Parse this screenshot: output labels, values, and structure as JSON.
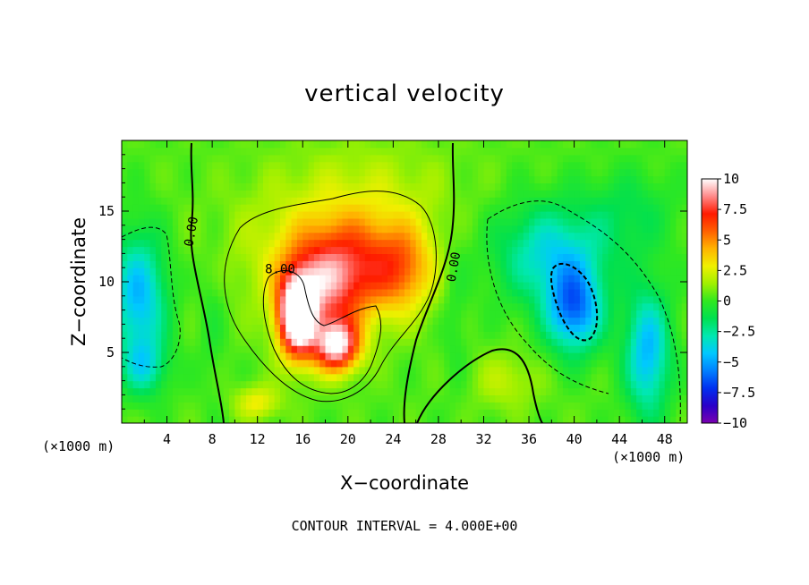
{
  "chart_data": {
    "type": "heatmap",
    "title": "vertical velocity",
    "xlabel": "X−coordinate",
    "ylabel": "Z−coordinate",
    "x_unit_left": "(×1000 m)",
    "x_unit_right": "(×1000 m)",
    "xlim": [
      0,
      50
    ],
    "ylim": [
      0,
      20
    ],
    "x_ticks": [
      4,
      8,
      12,
      16,
      20,
      24,
      28,
      32,
      36,
      40,
      44,
      48
    ],
    "x_tick_labels": [
      "4",
      "8",
      "12",
      "16",
      "20",
      "24",
      "28",
      "32",
      "36",
      "40",
      "44",
      "48"
    ],
    "y_ticks": [
      5,
      10,
      15
    ],
    "y_tick_labels": [
      "5",
      "10",
      "15"
    ],
    "colorbar": {
      "range": [
        -10,
        10
      ],
      "ticks": [
        10,
        7.5,
        5,
        2.5,
        0,
        -2.5,
        -5,
        -7.5,
        -10
      ],
      "tick_labels": [
        "10",
        "7.5",
        "5",
        "2.5",
        "0",
        "−2.5",
        "−5",
        "−7.5",
        "−10"
      ],
      "colors": [
        "#7a00b0",
        "#2a00c8",
        "#0030f0",
        "#0080ff",
        "#00c8ff",
        "#00e8b0",
        "#00e050",
        "#30e820",
        "#a0f000",
        "#f0f000",
        "#ffb400",
        "#ff6000",
        "#ff1a00",
        "#ff8a8a",
        "#ffffff"
      ]
    },
    "contour_labels": [
      {
        "text": "0.00",
        "x": 6.5,
        "y": 13.5,
        "rotate": -80
      },
      {
        "text": "8.00",
        "x": 14.0,
        "y": 10.6,
        "rotate": 0
      },
      {
        "text": "0.00",
        "x": 29.7,
        "y": 11.0,
        "rotate": -80
      }
    ],
    "features": [
      {
        "x": 15.5,
        "y": 7.5,
        "sx": 1.6,
        "sy": 2.8,
        "a": 11
      },
      {
        "x": 19.0,
        "y": 5.5,
        "sx": 2.0,
        "sy": 1.8,
        "a": 9
      },
      {
        "x": 17.5,
        "y": 9.5,
        "sx": 3.5,
        "sy": 3.5,
        "a": 5
      },
      {
        "x": 21.0,
        "y": 11.0,
        "sx": 4.5,
        "sy": 3.5,
        "a": 4
      },
      {
        "x": 25.0,
        "y": 11.0,
        "sx": 2.5,
        "sy": 3.0,
        "a": 3
      },
      {
        "x": 18.0,
        "y": 12.5,
        "sx": 9.0,
        "sy": 4.5,
        "a": 2
      },
      {
        "x": 22.0,
        "y": 17.0,
        "sx": 8.0,
        "sy": 3.5,
        "a": 1
      },
      {
        "x": 40.0,
        "y": 8.0,
        "sx": 2.5,
        "sy": 3.0,
        "a": -6
      },
      {
        "x": 38.0,
        "y": 12.0,
        "sx": 5.0,
        "sy": 3.5,
        "a": -4
      },
      {
        "x": 46.5,
        "y": 5.0,
        "sx": 2.0,
        "sy": 4.5,
        "a": -5
      },
      {
        "x": 1.5,
        "y": 9.0,
        "sx": 2.5,
        "sy": 4.5,
        "a": -5
      },
      {
        "x": 2.0,
        "y": 4.0,
        "sx": 2.0,
        "sy": 2.0,
        "a": -3
      },
      {
        "x": 34.0,
        "y": 3.0,
        "sx": 3.0,
        "sy": 2.0,
        "a": 1.5
      },
      {
        "x": 12.0,
        "y": 1.5,
        "sx": 2.0,
        "sy": 1.2,
        "a": 2.5
      },
      {
        "x": 45.0,
        "y": 15.0,
        "sx": 4.0,
        "sy": 3.0,
        "a": -1.5
      },
      {
        "x": 8.0,
        "y": 8.0,
        "sx": 1.2,
        "sy": 6.0,
        "a": -0.8
      },
      {
        "x": 29.5,
        "y": 8.0,
        "sx": 1.2,
        "sy": 6.0,
        "a": -0.8
      }
    ],
    "note": "CONTOUR INTERVAL = 4.000E+00"
  }
}
